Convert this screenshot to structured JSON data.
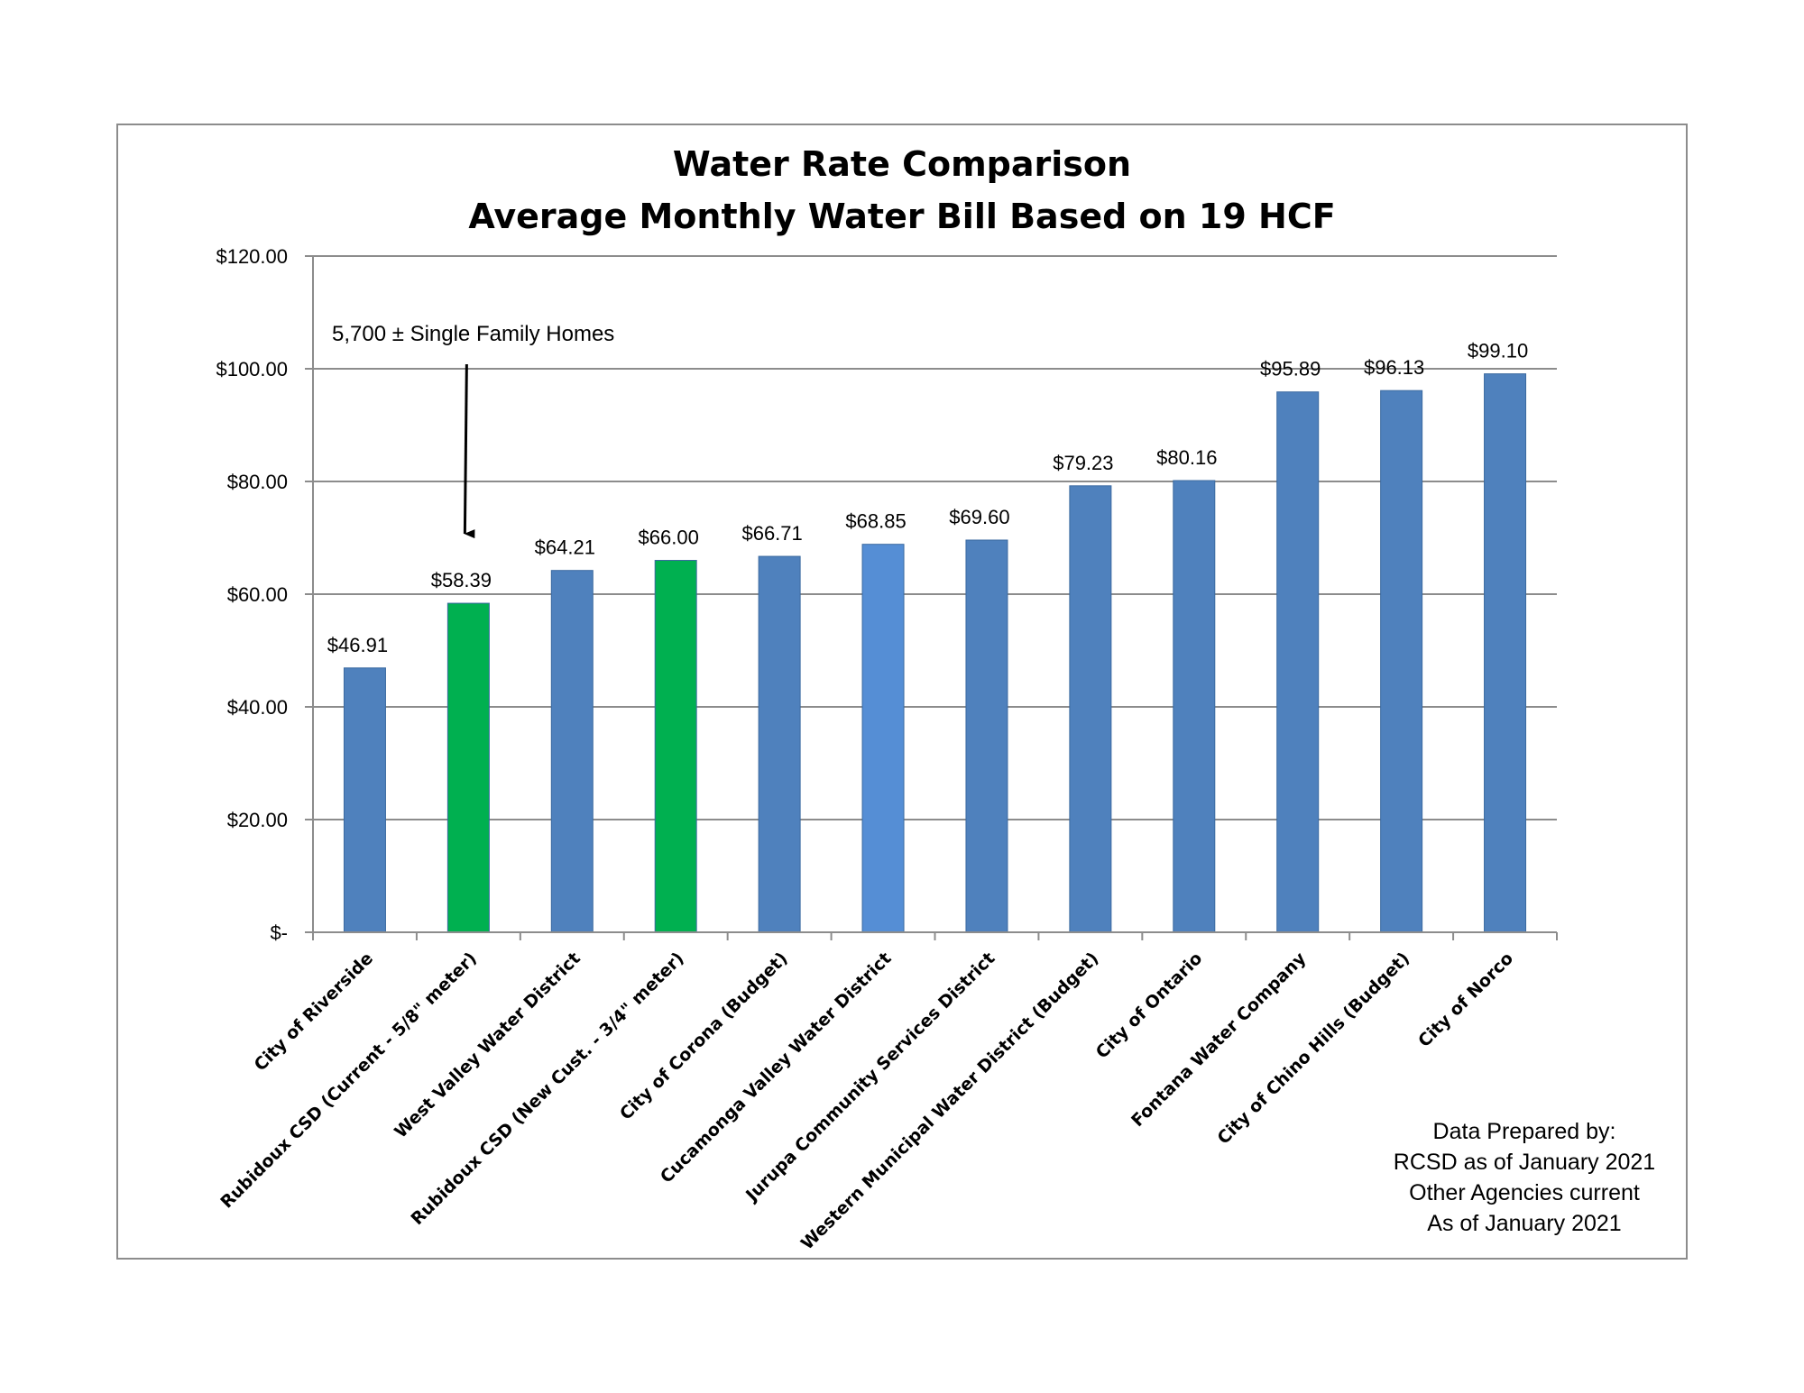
{
  "chart_data": {
    "type": "bar",
    "title": "Water Rate Comparison",
    "subtitle": "Average Monthly Water Bill Based on 19 HCF",
    "xlabel": "",
    "ylabel": "",
    "ylim": [
      0,
      120
    ],
    "yticks": [
      0,
      20,
      40,
      60,
      80,
      100,
      120
    ],
    "ytick_labels": [
      "$-",
      "$20.00",
      "$40.00",
      "$60.00",
      "$80.00",
      "$100.00",
      "$120.00"
    ],
    "grid": true,
    "categories": [
      "City of Riverside",
      "Rubidoux CSD (Current - 5/8\" meter)",
      "West Valley Water District",
      "Rubidoux CSD (New Cust. - 3/4\" meter)",
      "City of Corona (Budget)",
      "Cucamonga Valley Water District",
      "Jurupa Community Services District",
      "Western Municipal Water District (Budget)",
      "City of Ontario",
      "Fontana Water Company",
      "City of Chino Hills (Budget)",
      "City of Norco"
    ],
    "values": [
      46.91,
      58.39,
      64.21,
      66.0,
      66.71,
      68.85,
      69.6,
      79.23,
      80.16,
      95.89,
      96.13,
      99.1
    ],
    "value_labels": [
      "$46.91",
      "$58.39",
      "$64.21",
      "$66.00",
      "$66.71",
      "$68.85",
      "$69.60",
      "$79.23",
      "$80.16",
      "$95.89",
      "$96.13",
      "$99.10"
    ],
    "bar_colors": [
      "#4f81bd",
      "#00b050",
      "#4f81bd",
      "#00b050",
      "#4f81bd",
      "#558ed5",
      "#4f81bd",
      "#4f81bd",
      "#4f81bd",
      "#4f81bd",
      "#4f81bd",
      "#4f81bd"
    ],
    "annotation": {
      "text": "5,700 ± Single Family Homes",
      "points_to_category": 1
    }
  },
  "footnote": {
    "lines": [
      "Data Prepared by:",
      "RCSD as of January 2021",
      "Other Agencies current",
      "As of January 2021"
    ]
  },
  "colors": {
    "grid": "#8c8c8c",
    "axis": "#8c8c8c",
    "frame": "#8c8c8c"
  }
}
